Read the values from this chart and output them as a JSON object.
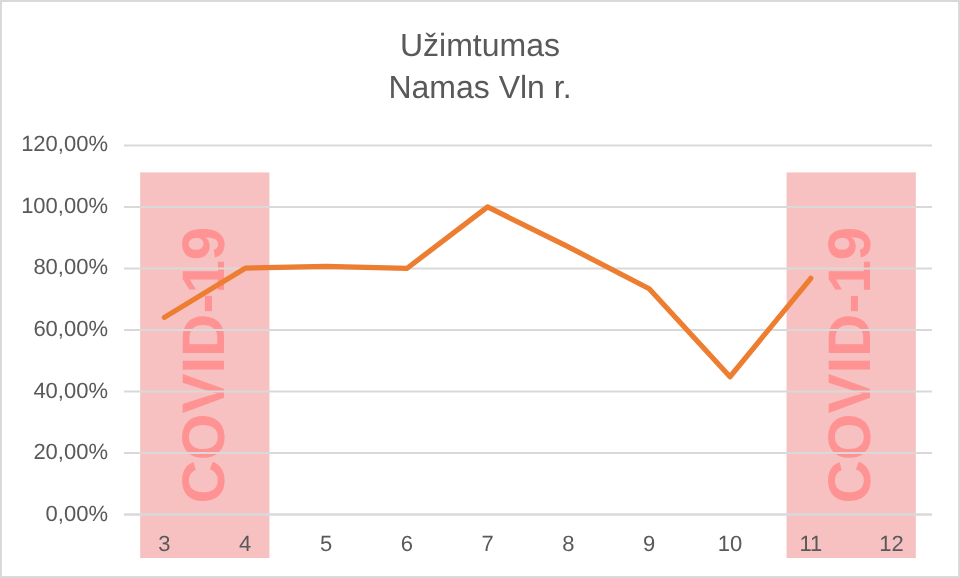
{
  "chart_data": {
    "type": "line",
    "title": "Užimtumas",
    "subtitle": "Namas Vln r.",
    "categories": [
      "3",
      "4",
      "5",
      "6",
      "7",
      "8",
      "9",
      "10",
      "11",
      "12"
    ],
    "series": [
      {
        "color": "#ed7d31",
        "values": [
          64.1,
          80.1,
          80.7,
          80,
          100,
          87,
          73.4,
          44.8,
          76.8,
          null
        ]
      }
    ],
    "ylim": [
      0,
      120
    ],
    "yticks": [
      {
        "value": 0,
        "label": "0,00%"
      },
      {
        "value": 20,
        "label": "20,00%"
      },
      {
        "value": 40,
        "label": "40,00%"
      },
      {
        "value": 60,
        "label": "60,00%"
      },
      {
        "value": 80,
        "label": "80,00%"
      },
      {
        "value": 100,
        "label": "100,00%"
      },
      {
        "value": 120,
        "label": "120,00%"
      }
    ],
    "grid": "y",
    "marker": "none",
    "line_style": "solid",
    "bands": [
      {
        "axis": "x",
        "from": "3",
        "to": "4",
        "label": "COVID-19",
        "color": "#f4a6a6"
      },
      {
        "axis": "x",
        "from": "11",
        "to": "12",
        "label": "COVID-19",
        "color": "#f4a6a6"
      }
    ]
  }
}
